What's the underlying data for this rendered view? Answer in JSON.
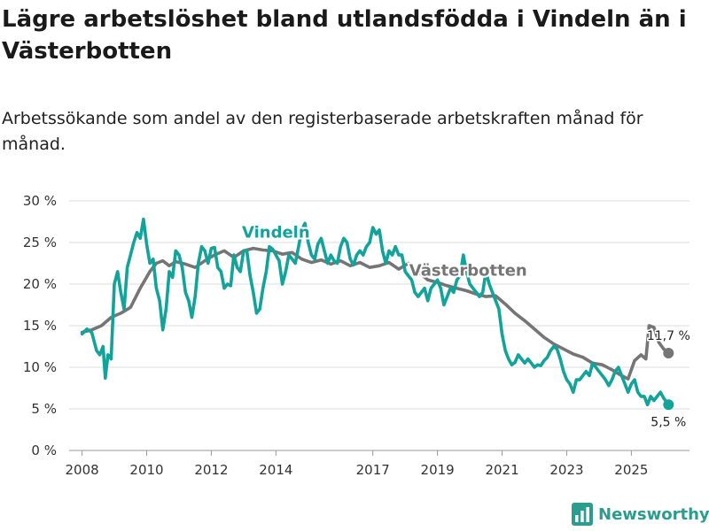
{
  "header": {
    "title": "Lägre arbetslöshet bland utlandsfödda i Vindeln än i Västerbotten",
    "subtitle": "Arbetssökande som andel av den registerbaserade arbetskraften månad för månad."
  },
  "brand": {
    "name": "Newsworthy",
    "color": "#2a9d8f"
  },
  "chart_data": {
    "type": "line",
    "title": "Lägre arbetslöshet bland utlandsfödda i Vindeln än i Västerbotten",
    "subtitle": "Arbetssökande som andel av den registerbaserade arbetskraften månad för månad.",
    "xlabel": "",
    "ylabel": "",
    "xlim": [
      2007.6,
      2026.8
    ],
    "ylim": [
      0,
      30
    ],
    "x_ticks": [
      {
        "value": 2008,
        "label": "2008"
      },
      {
        "value": 2010,
        "label": "2010"
      },
      {
        "value": 2012,
        "label": "2012"
      },
      {
        "value": 2014,
        "label": "2014"
      },
      {
        "value": 2017,
        "label": "2017"
      },
      {
        "value": 2019,
        "label": "2019"
      },
      {
        "value": 2021,
        "label": "2021"
      },
      {
        "value": 2023,
        "label": "2023"
      },
      {
        "value": 2025,
        "label": "2025"
      }
    ],
    "y_ticks": [
      {
        "value": 0,
        "label": "0 %"
      },
      {
        "value": 5,
        "label": "5 %"
      },
      {
        "value": 10,
        "label": "10 %"
      },
      {
        "value": 15,
        "label": "15 %"
      },
      {
        "value": 20,
        "label": "20 %"
      },
      {
        "value": 25,
        "label": "25 %"
      },
      {
        "value": 30,
        "label": "30 %"
      }
    ],
    "grid": true,
    "series": [
      {
        "name": "Västerbotten",
        "color": "#757575",
        "end_label": "11,7 %",
        "points": [
          [
            2008.0,
            14.2
          ],
          [
            2008.3,
            14.5
          ],
          [
            2008.6,
            15.0
          ],
          [
            2008.9,
            16.0
          ],
          [
            2009.2,
            16.5
          ],
          [
            2009.5,
            17.2
          ],
          [
            2009.8,
            19.5
          ],
          [
            2010.1,
            21.5
          ],
          [
            2010.3,
            22.5
          ],
          [
            2010.5,
            22.8
          ],
          [
            2010.7,
            22.2
          ],
          [
            2010.9,
            22.7
          ],
          [
            2011.2,
            22.4
          ],
          [
            2011.5,
            22.0
          ],
          [
            2011.8,
            22.8
          ],
          [
            2012.1,
            23.5
          ],
          [
            2012.4,
            24.0
          ],
          [
            2012.7,
            23.2
          ],
          [
            2013.0,
            24.0
          ],
          [
            2013.3,
            24.3
          ],
          [
            2013.6,
            24.1
          ],
          [
            2013.9,
            24.0
          ],
          [
            2014.2,
            23.6
          ],
          [
            2014.5,
            23.8
          ],
          [
            2014.8,
            23.0
          ],
          [
            2015.1,
            22.6
          ],
          [
            2015.4,
            22.9
          ],
          [
            2015.7,
            22.4
          ],
          [
            2016.0,
            22.8
          ],
          [
            2016.3,
            22.2
          ],
          [
            2016.6,
            22.6
          ],
          [
            2016.9,
            22.0
          ],
          [
            2017.2,
            22.2
          ],
          [
            2017.5,
            22.6
          ],
          [
            2017.8,
            21.8
          ],
          [
            2018.1,
            22.5
          ],
          [
            2018.4,
            21.5
          ],
          [
            2018.7,
            20.5
          ],
          [
            2019.0,
            20.2
          ],
          [
            2019.3,
            19.8
          ],
          [
            2019.6,
            19.5
          ],
          [
            2019.9,
            19.2
          ],
          [
            2020.2,
            18.8
          ],
          [
            2020.5,
            18.5
          ],
          [
            2020.8,
            18.6
          ],
          [
            2021.1,
            17.6
          ],
          [
            2021.4,
            16.5
          ],
          [
            2021.7,
            15.6
          ],
          [
            2022.0,
            14.6
          ],
          [
            2022.3,
            13.6
          ],
          [
            2022.6,
            12.8
          ],
          [
            2022.9,
            12.2
          ],
          [
            2023.2,
            11.6
          ],
          [
            2023.5,
            11.2
          ],
          [
            2023.8,
            10.5
          ],
          [
            2024.1,
            10.3
          ],
          [
            2024.4,
            9.7
          ],
          [
            2024.7,
            9.0
          ],
          [
            2024.9,
            8.6
          ],
          [
            2025.1,
            10.8
          ],
          [
            2025.3,
            11.5
          ],
          [
            2025.45,
            11.0
          ],
          [
            2025.55,
            15.0
          ],
          [
            2025.7,
            14.8
          ],
          [
            2025.85,
            13.0
          ],
          [
            2026.0,
            12.2
          ],
          [
            2026.15,
            11.7
          ]
        ]
      },
      {
        "name": "Vindeln",
        "color": "#12a39a",
        "end_label": "5,5 %",
        "points": [
          [
            2008.0,
            14.0
          ],
          [
            2008.15,
            14.6
          ],
          [
            2008.3,
            14.2
          ],
          [
            2008.45,
            12.0
          ],
          [
            2008.55,
            11.5
          ],
          [
            2008.65,
            12.5
          ],
          [
            2008.72,
            8.7
          ],
          [
            2008.8,
            11.5
          ],
          [
            2008.9,
            11.0
          ],
          [
            2009.0,
            20.0
          ],
          [
            2009.1,
            21.5
          ],
          [
            2009.2,
            19.0
          ],
          [
            2009.3,
            17.0
          ],
          [
            2009.4,
            22.0
          ],
          [
            2009.5,
            23.5
          ],
          [
            2009.6,
            25.0
          ],
          [
            2009.7,
            26.2
          ],
          [
            2009.8,
            25.5
          ],
          [
            2009.9,
            27.8
          ],
          [
            2010.0,
            24.8
          ],
          [
            2010.1,
            22.5
          ],
          [
            2010.2,
            23.0
          ],
          [
            2010.3,
            19.5
          ],
          [
            2010.4,
            18.0
          ],
          [
            2010.5,
            14.5
          ],
          [
            2010.6,
            17.0
          ],
          [
            2010.7,
            21.5
          ],
          [
            2010.8,
            20.8
          ],
          [
            2010.9,
            24.0
          ],
          [
            2011.0,
            23.5
          ],
          [
            2011.1,
            22.0
          ],
          [
            2011.2,
            19.0
          ],
          [
            2011.3,
            18.0
          ],
          [
            2011.4,
            16.0
          ],
          [
            2011.5,
            18.5
          ],
          [
            2011.6,
            22.5
          ],
          [
            2011.7,
            24.5
          ],
          [
            2011.8,
            24.0
          ],
          [
            2011.9,
            22.5
          ],
          [
            2012.0,
            24.3
          ],
          [
            2012.1,
            24.4
          ],
          [
            2012.2,
            22.0
          ],
          [
            2012.3,
            21.5
          ],
          [
            2012.4,
            19.5
          ],
          [
            2012.5,
            20.0
          ],
          [
            2012.6,
            19.8
          ],
          [
            2012.7,
            23.5
          ],
          [
            2012.8,
            22.0
          ],
          [
            2012.9,
            21.5
          ],
          [
            2013.0,
            24.0
          ],
          [
            2013.1,
            24.0
          ],
          [
            2013.2,
            21.0
          ],
          [
            2013.3,
            19.0
          ],
          [
            2013.4,
            16.5
          ],
          [
            2013.5,
            17.0
          ],
          [
            2013.6,
            19.5
          ],
          [
            2013.7,
            21.5
          ],
          [
            2013.8,
            24.5
          ],
          [
            2013.9,
            24.2
          ],
          [
            2014.0,
            23.5
          ],
          [
            2014.1,
            22.8
          ],
          [
            2014.2,
            20.0
          ],
          [
            2014.3,
            21.5
          ],
          [
            2014.4,
            23.5
          ],
          [
            2014.5,
            23.0
          ],
          [
            2014.6,
            22.5
          ],
          [
            2014.7,
            24.5
          ],
          [
            2014.8,
            26.5
          ],
          [
            2014.9,
            27.3
          ],
          [
            2015.0,
            25.0
          ],
          [
            2015.1,
            23.5
          ],
          [
            2015.2,
            23.0
          ],
          [
            2015.3,
            24.8
          ],
          [
            2015.4,
            25.5
          ],
          [
            2015.5,
            24.0
          ],
          [
            2015.6,
            22.5
          ],
          [
            2015.7,
            23.5
          ],
          [
            2015.8,
            22.8
          ],
          [
            2015.9,
            22.5
          ],
          [
            2016.0,
            24.5
          ],
          [
            2016.1,
            25.5
          ],
          [
            2016.2,
            25.0
          ],
          [
            2016.3,
            23.0
          ],
          [
            2016.4,
            22.3
          ],
          [
            2016.5,
            23.5
          ],
          [
            2016.6,
            24.0
          ],
          [
            2016.7,
            23.5
          ],
          [
            2016.8,
            24.5
          ],
          [
            2016.9,
            25.0
          ],
          [
            2017.0,
            26.8
          ],
          [
            2017.1,
            26.0
          ],
          [
            2017.2,
            26.5
          ],
          [
            2017.3,
            24.0
          ],
          [
            2017.4,
            22.5
          ],
          [
            2017.5,
            24.0
          ],
          [
            2017.6,
            23.5
          ],
          [
            2017.7,
            24.5
          ],
          [
            2017.8,
            23.5
          ],
          [
            2017.9,
            23.5
          ],
          [
            2018.0,
            21.5
          ],
          [
            2018.1,
            21.0
          ],
          [
            2018.2,
            20.5
          ],
          [
            2018.3,
            19.0
          ],
          [
            2018.4,
            18.5
          ],
          [
            2018.5,
            19.0
          ],
          [
            2018.6,
            19.5
          ],
          [
            2018.7,
            18.0
          ],
          [
            2018.8,
            19.5
          ],
          [
            2018.9,
            20.0
          ],
          [
            2019.0,
            20.5
          ],
          [
            2019.1,
            19.5
          ],
          [
            2019.2,
            17.5
          ],
          [
            2019.3,
            18.5
          ],
          [
            2019.4,
            19.5
          ],
          [
            2019.5,
            19.0
          ],
          [
            2019.6,
            20.5
          ],
          [
            2019.7,
            21.0
          ],
          [
            2019.8,
            23.5
          ],
          [
            2019.9,
            21.5
          ],
          [
            2020.0,
            20.0
          ],
          [
            2020.1,
            19.5
          ],
          [
            2020.2,
            19.0
          ],
          [
            2020.3,
            18.5
          ],
          [
            2020.4,
            19.0
          ],
          [
            2020.5,
            21.5
          ],
          [
            2020.6,
            20.0
          ],
          [
            2020.7,
            19.0
          ],
          [
            2020.8,
            18.0
          ],
          [
            2020.9,
            17.0
          ],
          [
            2021.0,
            14.0
          ],
          [
            2021.1,
            12.0
          ],
          [
            2021.2,
            11.0
          ],
          [
            2021.3,
            10.3
          ],
          [
            2021.4,
            10.6
          ],
          [
            2021.5,
            11.5
          ],
          [
            2021.6,
            11.0
          ],
          [
            2021.7,
            10.5
          ],
          [
            2021.8,
            11.0
          ],
          [
            2021.9,
            10.5
          ],
          [
            2022.0,
            10.0
          ],
          [
            2022.1,
            10.3
          ],
          [
            2022.2,
            10.2
          ],
          [
            2022.3,
            10.8
          ],
          [
            2022.4,
            11.2
          ],
          [
            2022.5,
            12.0
          ],
          [
            2022.6,
            12.5
          ],
          [
            2022.7,
            12.2
          ],
          [
            2022.8,
            11.0
          ],
          [
            2022.9,
            9.5
          ],
          [
            2023.0,
            8.5
          ],
          [
            2023.1,
            8.0
          ],
          [
            2023.2,
            7.0
          ],
          [
            2023.3,
            8.5
          ],
          [
            2023.4,
            8.5
          ],
          [
            2023.5,
            9.0
          ],
          [
            2023.6,
            9.5
          ],
          [
            2023.7,
            9.0
          ],
          [
            2023.8,
            10.5
          ],
          [
            2023.9,
            10.0
          ],
          [
            2024.0,
            9.5
          ],
          [
            2024.1,
            9.0
          ],
          [
            2024.2,
            8.5
          ],
          [
            2024.3,
            7.8
          ],
          [
            2024.4,
            8.5
          ],
          [
            2024.5,
            9.5
          ],
          [
            2024.6,
            10.0
          ],
          [
            2024.7,
            9.0
          ],
          [
            2024.8,
            8.0
          ],
          [
            2024.9,
            7.0
          ],
          [
            2025.0,
            8.0
          ],
          [
            2025.1,
            8.5
          ],
          [
            2025.2,
            7.0
          ],
          [
            2025.3,
            6.5
          ],
          [
            2025.4,
            6.5
          ],
          [
            2025.5,
            5.5
          ],
          [
            2025.6,
            6.5
          ],
          [
            2025.7,
            6.0
          ],
          [
            2025.8,
            6.5
          ],
          [
            2025.9,
            7.0
          ],
          [
            2026.0,
            6.3
          ],
          [
            2026.15,
            5.5
          ]
        ]
      }
    ],
    "annotations": [
      {
        "text": "Vindeln",
        "series": "Vindeln",
        "at": [
          2014.0,
          25.6
        ]
      },
      {
        "text": "Västerbotten",
        "series": "Västerbotten",
        "at": [
          2019.95,
          21.0
        ]
      }
    ]
  }
}
